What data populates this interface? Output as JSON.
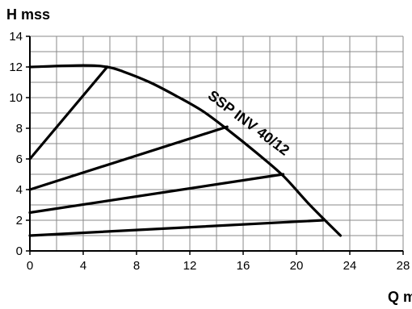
{
  "chart_data": {
    "type": "line",
    "title": "",
    "ylabel": "H mss",
    "xlabel": "Q m",
    "xlim": [
      0,
      28
    ],
    "ylim": [
      0,
      14
    ],
    "xticks": [
      0,
      4,
      8,
      12,
      16,
      20,
      24,
      28
    ],
    "yticks": [
      0,
      2,
      4,
      6,
      8,
      10,
      12,
      14
    ],
    "x_minor_step": 2,
    "y_minor_step": 1,
    "grid": true,
    "annotations": [
      {
        "text": "SSP INV 40/12",
        "x": 16.2,
        "y": 8.1
      }
    ],
    "series": [
      {
        "name": "SSP INV 40/12",
        "role": "max-curve",
        "x": [
          0,
          4,
          5.8,
          7,
          9,
          11,
          13,
          15,
          17,
          19,
          21,
          23.3
        ],
        "y": [
          12,
          12.1,
          12.0,
          11.7,
          11.0,
          10.1,
          9.1,
          7.8,
          6.4,
          4.9,
          3.0,
          1.0
        ]
      },
      {
        "role": "constant-pressure",
        "x": [
          0,
          5.8
        ],
        "y": [
          6,
          12.0
        ]
      },
      {
        "role": "constant-pressure",
        "x": [
          0,
          14.8
        ],
        "y": [
          4,
          8.1
        ]
      },
      {
        "role": "constant-pressure",
        "x": [
          0,
          19.0
        ],
        "y": [
          2.5,
          5.0
        ]
      },
      {
        "role": "constant-pressure",
        "x": [
          0,
          22.0
        ],
        "y": [
          1,
          2.0
        ]
      }
    ]
  }
}
